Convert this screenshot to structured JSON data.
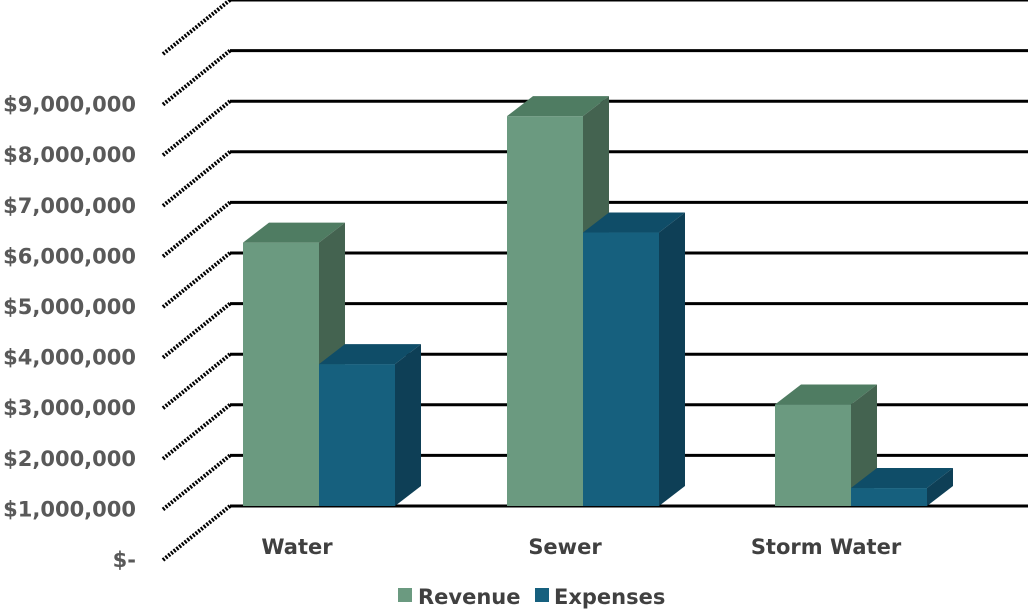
{
  "chart_data": {
    "type": "bar",
    "style": "3d-clustered-column",
    "categories": [
      "Water",
      "Sewer",
      "Storm Water"
    ],
    "series": [
      {
        "name": "Revenue",
        "values": [
          5600000,
          8100000,
          2400000
        ],
        "color": "#6b9a80",
        "top_color": "#4f7c62",
        "side_color": "#446350"
      },
      {
        "name": "Expenses",
        "values": [
          3200000,
          5800000,
          750000
        ],
        "color": "#16607e",
        "top_color": "#0f4d68",
        "side_color": "#0e3f56"
      }
    ],
    "ylim": [
      0,
      10000000
    ],
    "yticks": [
      {
        "value": 0,
        "label": "$-"
      },
      {
        "value": 1000000,
        "label": "$1,000,000"
      },
      {
        "value": 2000000,
        "label": "$2,000,000"
      },
      {
        "value": 3000000,
        "label": "$3,000,000"
      },
      {
        "value": 4000000,
        "label": "$4,000,000"
      },
      {
        "value": 5000000,
        "label": "$5,000,000"
      },
      {
        "value": 6000000,
        "label": "$6,000,000"
      },
      {
        "value": 7000000,
        "label": "$7,000,000"
      },
      {
        "value": 8000000,
        "label": "$8,000,000"
      },
      {
        "value": 9000000,
        "label": "$9,000,000"
      }
    ],
    "grid": true,
    "legend": "bottom"
  }
}
